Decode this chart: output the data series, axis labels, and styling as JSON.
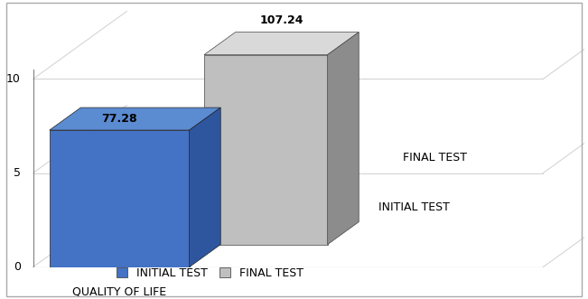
{
  "initial_value": 77.28,
  "final_value": 107.24,
  "initial_label": "INITIAL TEST",
  "final_label": "FINAL TEST",
  "blue_front": "#4472c4",
  "blue_top": "#5b8bd0",
  "blue_side": "#2e569e",
  "gray_front": "#bfbfbf",
  "gray_top": "#d9d9d9",
  "gray_side": "#8c8c8c",
  "xlabel": "QUALITY OF LIFE",
  "ytick_labels": [
    "0",
    "5",
    "10"
  ],
  "ytick_vals": [
    0,
    5,
    10
  ],
  "background_color": "#ffffff",
  "grid_color": "#d0d0d0",
  "annotation_fontsize": 9,
  "label_fontsize": 9,
  "legend_fontsize": 9,
  "series_label_initial": "INITIAL TEST",
  "series_label_final": "FINAL TEST"
}
